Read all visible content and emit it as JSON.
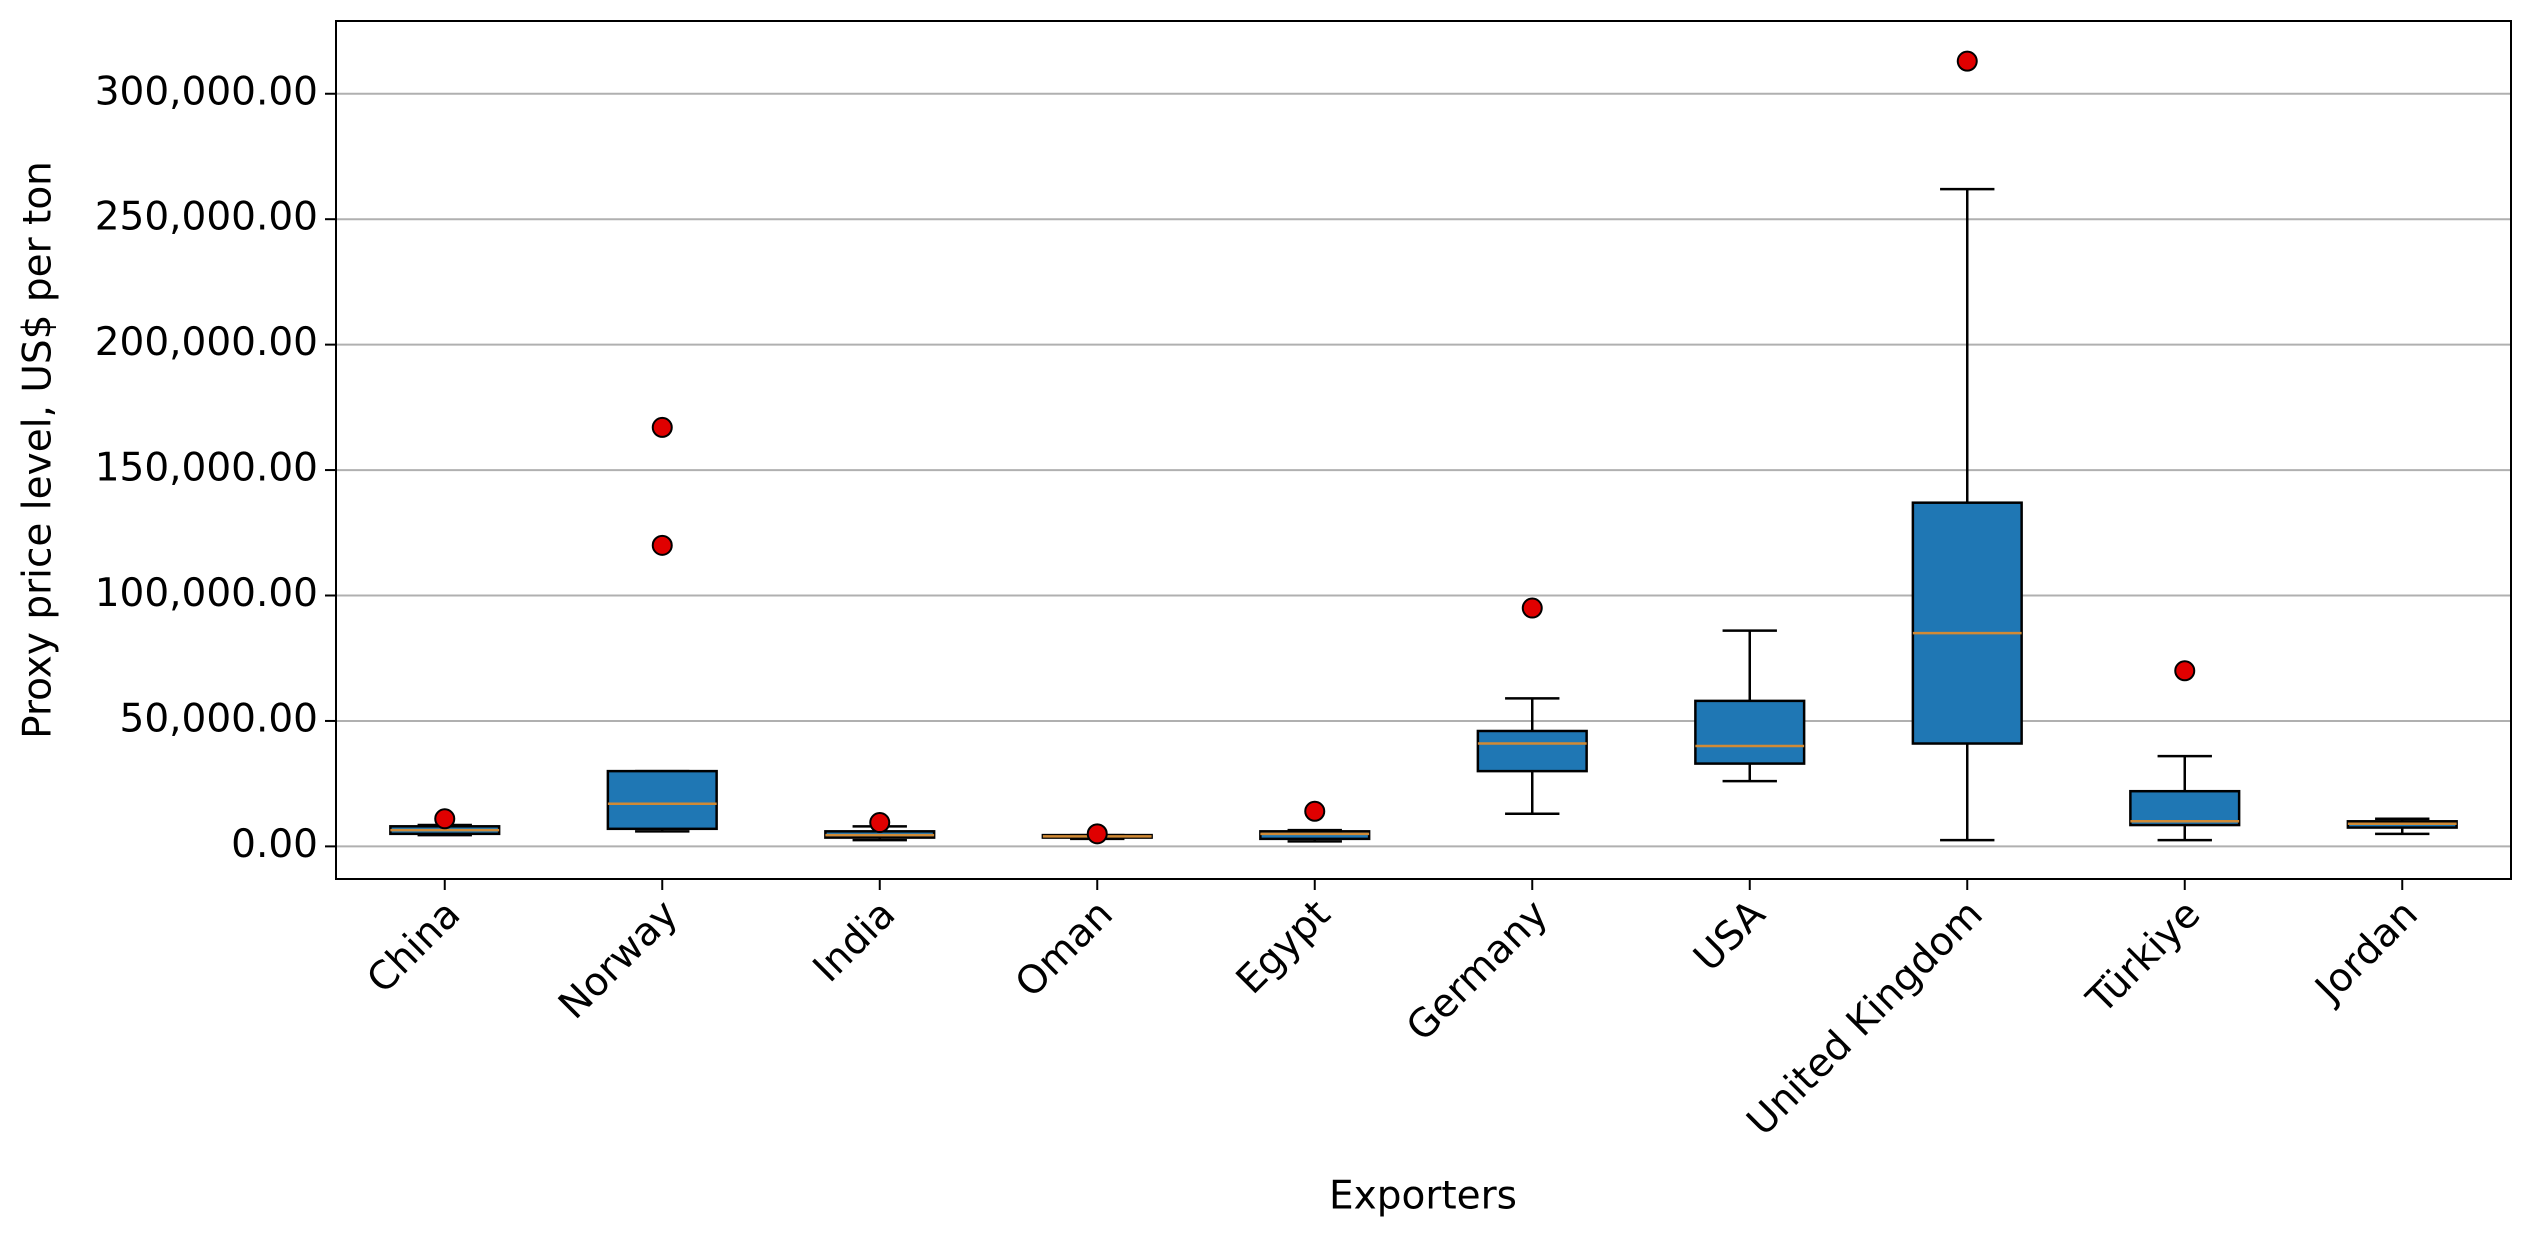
{
  "chart_data": {
    "type": "box",
    "xlabel": "Exporters",
    "ylabel": "Proxy price level, US$ per ton",
    "categories": [
      "China",
      "Norway",
      "India",
      "Oman",
      "Egypt",
      "Germany",
      "USA",
      "United Kingdom",
      "Türkiye",
      "Jordan"
    ],
    "boxes": [
      {
        "whislo": 4500,
        "q1": 5000,
        "med": 6500,
        "q3": 8000,
        "whishi": 8500,
        "fliers": [
          11000
        ]
      },
      {
        "whislo": 6000,
        "q1": 7000,
        "med": 17000,
        "q3": 30000,
        "whishi": 30000,
        "fliers": [
          167000,
          120000
        ]
      },
      {
        "whislo": 2500,
        "q1": 3500,
        "med": 4500,
        "q3": 6000,
        "whishi": 8000,
        "fliers": [
          9500
        ]
      },
      {
        "whislo": 3000,
        "q1": 3500,
        "med": 4000,
        "q3": 4500,
        "whishi": 4500,
        "fliers": [
          5000
        ]
      },
      {
        "whislo": 2000,
        "q1": 3000,
        "med": 5000,
        "q3": 6000,
        "whishi": 6500,
        "fliers": [
          14000
        ]
      },
      {
        "whislo": 13000,
        "q1": 30000,
        "med": 41000,
        "q3": 46000,
        "whishi": 59000,
        "fliers": [
          95000
        ]
      },
      {
        "whislo": 26000,
        "q1": 33000,
        "med": 40000,
        "q3": 58000,
        "whishi": 86000,
        "fliers": []
      },
      {
        "whislo": 2500,
        "q1": 41000,
        "med": 85000,
        "q3": 137000,
        "whishi": 262000,
        "fliers": [
          313000
        ]
      },
      {
        "whislo": 2500,
        "q1": 8500,
        "med": 10000,
        "q3": 22000,
        "whishi": 36000,
        "fliers": [
          70000
        ]
      },
      {
        "whislo": 5000,
        "q1": 7500,
        "med": 9000,
        "q3": 10000,
        "whishi": 11000,
        "fliers": []
      }
    ],
    "color": "#1f77b4",
    "median_color": "#d08a35",
    "flier_color": "#e00000",
    "ylim": [
      -13000,
      329000
    ],
    "yticks": [
      {
        "value": 0,
        "label": "0.00"
      },
      {
        "value": 50000,
        "label": "50,000.00"
      },
      {
        "value": 100000,
        "label": "100,000.00"
      },
      {
        "value": 150000,
        "label": "150,000.00"
      },
      {
        "value": 200000,
        "label": "200,000.00"
      },
      {
        "value": 250000,
        "label": "250,000.00"
      },
      {
        "value": 300000,
        "label": "300,000.00"
      }
    ],
    "grid": true
  }
}
